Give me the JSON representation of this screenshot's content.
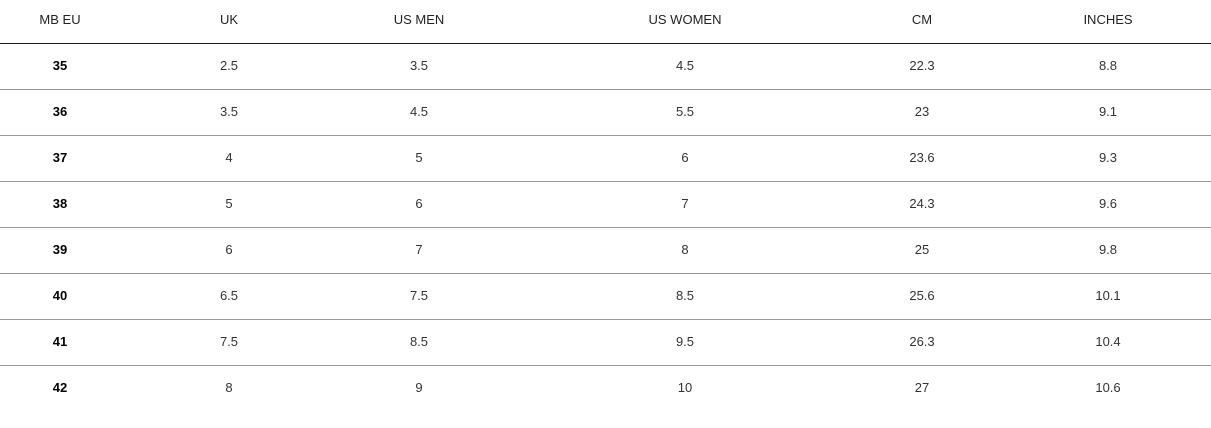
{
  "table": {
    "header": [
      "MB EU",
      "UK",
      "US MEN",
      "US WOMEN",
      "CM",
      "INCHES"
    ],
    "rows": [
      [
        "35",
        "2.5",
        "3.5",
        "4.5",
        "22.3",
        "8.8"
      ],
      [
        "36",
        "3.5",
        "4.5",
        "5.5",
        "23",
        "9.1"
      ],
      [
        "37",
        "4",
        "5",
        "6",
        "23.6",
        "9.3"
      ],
      [
        "38",
        "5",
        "6",
        "7",
        "24.3",
        "9.6"
      ],
      [
        "39",
        "6",
        "7",
        "8",
        "25",
        "9.8"
      ],
      [
        "40",
        "6.5",
        "7.5",
        "8.5",
        "25.6",
        "10.1"
      ],
      [
        "41",
        "7.5",
        "8.5",
        "9.5",
        "26.3",
        "10.4"
      ],
      [
        "42",
        "8",
        "9",
        "10",
        "27",
        "10.6"
      ]
    ]
  }
}
